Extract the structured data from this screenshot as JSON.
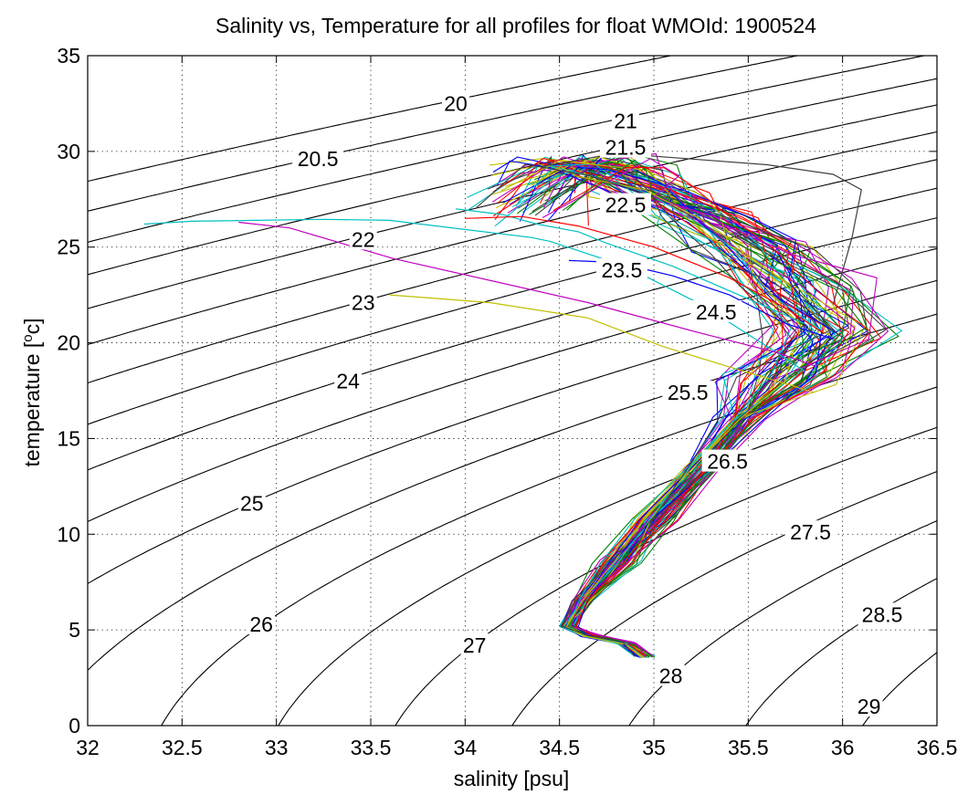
{
  "chart_data": {
    "type": "scatter",
    "title": "Salinity vs, Temperature for all profiles for float WMOId: 1900524",
    "xlabel": "salinity [psu]",
    "ylabel_main": "temperature [",
    "ylabel_sup": "o",
    "ylabel_end": "c]",
    "xlim": [
      32,
      36.5
    ],
    "ylim": [
      0,
      35
    ],
    "x_ticks": [
      32,
      32.5,
      33,
      33.5,
      34,
      34.5,
      35,
      35.5,
      36,
      36.5
    ],
    "x_tick_labels": [
      "32",
      "32.5",
      "33",
      "33.5",
      "34",
      "34.5",
      "35",
      "35.5",
      "36",
      "36.5"
    ],
    "y_ticks": [
      0,
      5,
      10,
      15,
      20,
      25,
      30,
      35
    ],
    "y_tick_labels": [
      "0",
      "5",
      "10",
      "15",
      "20",
      "25",
      "30",
      "35"
    ],
    "grid": true,
    "grid_style": "dotted",
    "contour_type": "density sigma-t isopycnals",
    "contour_levels": [
      20,
      20.5,
      21,
      21.5,
      22,
      22.5,
      23,
      23.5,
      24,
      24.5,
      25,
      25.5,
      26,
      26.5,
      27,
      27.5,
      28,
      28.5,
      29
    ],
    "contour_labels": [
      {
        "text": "20",
        "s": 33.95,
        "t": 32.5
      },
      {
        "text": "20.5",
        "s": 33.22,
        "t": 29.6
      },
      {
        "text": "21",
        "s": 34.85,
        "t": 31.6
      },
      {
        "text": "21.5",
        "s": 34.85,
        "t": 30.2
      },
      {
        "text": "22",
        "s": 33.46,
        "t": 25.4
      },
      {
        "text": "22.5",
        "s": 34.85,
        "t": 27.2
      },
      {
        "text": "23",
        "s": 33.46,
        "t": 22.1
      },
      {
        "text": "23.5",
        "s": 34.83,
        "t": 23.8
      },
      {
        "text": "24",
        "s": 33.38,
        "t": 18.0
      },
      {
        "text": "24.5",
        "s": 35.33,
        "t": 21.6
      },
      {
        "text": "25",
        "s": 32.87,
        "t": 11.6
      },
      {
        "text": "25.5",
        "s": 35.18,
        "t": 17.4
      },
      {
        "text": "26",
        "s": 32.92,
        "t": 5.3
      },
      {
        "text": "26.5",
        "s": 35.39,
        "t": 13.8
      },
      {
        "text": "27",
        "s": 34.05,
        "t": 4.2
      },
      {
        "text": "27.5",
        "s": 35.83,
        "t": 10.1
      },
      {
        "text": "28",
        "s": 35.09,
        "t": 2.6
      },
      {
        "text": "28.5",
        "s": 36.21,
        "t": 5.8
      },
      {
        "text": "29",
        "s": 36.14,
        "t": 1.0
      }
    ],
    "profile_count": 70,
    "profile_colors": [
      "#0000ff",
      "#008000",
      "#ff0000",
      "#00bfbf",
      "#bf00bf",
      "#bfbf00",
      "#404040"
    ],
    "mean_profile": {
      "s": [
        34.35,
        34.6,
        34.75,
        34.95,
        35.25,
        35.55,
        35.75,
        35.9,
        35.65,
        35.45,
        35.25,
        35.0,
        34.8,
        34.62,
        34.55,
        34.65,
        34.85,
        34.95
      ],
      "t": [
        29.6,
        29.5,
        29.0,
        28.0,
        26.6,
        25.0,
        23.0,
        20.5,
        18.2,
        16.0,
        13.5,
        10.8,
        8.5,
        6.5,
        5.2,
        4.7,
        4.3,
        3.6
      ]
    },
    "outlier_profiles": [
      {
        "color": "#00bfbf",
        "s": [
          32.3,
          32.55,
          33.25,
          33.6,
          34.35,
          34.45,
          34.85,
          35.25,
          35.65,
          35.8
        ],
        "t": [
          26.2,
          26.35,
          26.45,
          26.4,
          25.5,
          25.3,
          24.0,
          22.0,
          19.5,
          18.5
        ]
      },
      {
        "color": "#bf00bf",
        "s": [
          32.8,
          33.07,
          33.62,
          34.65,
          35.25,
          35.65,
          35.85
        ],
        "t": [
          26.3,
          26.0,
          24.4,
          22.1,
          20.5,
          19.5,
          18.8
        ]
      },
      {
        "color": "#bfbf00",
        "s": [
          33.6,
          34.13,
          34.65,
          35.05,
          35.38,
          35.72,
          35.85
        ],
        "t": [
          22.5,
          22.1,
          21.3,
          19.8,
          18.8,
          17.8,
          17.4
        ]
      },
      {
        "color": "#00bfbf",
        "s": [
          33.95,
          34.2,
          34.38,
          34.6,
          34.75,
          35.1,
          35.45,
          35.8
        ],
        "t": [
          27.0,
          26.7,
          26.2,
          25.8,
          25.2,
          24.0,
          22.5,
          21.0
        ]
      },
      {
        "color": "#0000ff",
        "s": [
          34.55,
          34.8,
          35.1,
          35.4,
          35.7,
          35.95
        ],
        "t": [
          24.3,
          24.2,
          23.5,
          22.5,
          21.0,
          20.2
        ]
      },
      {
        "color": "#ff0000",
        "s": [
          34.0,
          34.3,
          34.6,
          35.0,
          35.4,
          35.7,
          35.9
        ],
        "t": [
          26.5,
          26.6,
          26.1,
          25.0,
          23.4,
          21.8,
          20.5
        ]
      },
      {
        "color": "#404040",
        "s": [
          34.4,
          34.8,
          35.2,
          35.6,
          35.95,
          36.1,
          36.05,
          35.95
        ],
        "t": [
          29.2,
          29.9,
          29.6,
          29.3,
          28.8,
          28.0,
          25.5,
          22.0
        ]
      }
    ]
  }
}
